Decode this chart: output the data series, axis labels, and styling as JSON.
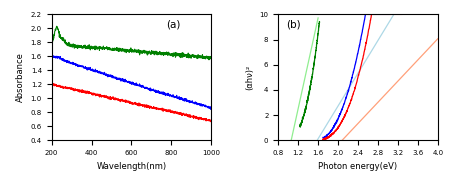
{
  "panel_a": {
    "title": "(a)",
    "xlabel": "Wavelength(nm)",
    "ylabel": "Absorbance",
    "xlim": [
      200,
      1000
    ],
    "ylim": [
      0.4,
      2.2
    ],
    "yticks": [
      0.4,
      0.6,
      0.8,
      1.0,
      1.2,
      1.4,
      1.6,
      1.8,
      2.0,
      2.2
    ],
    "xticks": [
      200,
      400,
      600,
      800,
      1000
    ],
    "colors": [
      "green",
      "blue",
      "red"
    ]
  },
  "panel_b": {
    "title": "(b)",
    "xlabel": "Photon energy(eV)",
    "ylabel": "(αhν)²",
    "xlim": [
      0.8,
      4.0
    ],
    "ylim": [
      0,
      10
    ],
    "yticks": [
      0,
      2,
      4,
      6,
      8,
      10
    ],
    "xticks": [
      0.8,
      1.2,
      1.6,
      2.0,
      2.4,
      2.8,
      3.2,
      3.6,
      4.0
    ],
    "colors": [
      "green",
      "blue",
      "red"
    ],
    "tangent_colors": [
      "lightgreen",
      "lightblue",
      "lightsalmon"
    ],
    "green_bg": [
      1.05,
      1.6
    ],
    "blue_bg": [
      1.75,
      3.0
    ],
    "red_bg": [
      1.75,
      3.25
    ]
  }
}
